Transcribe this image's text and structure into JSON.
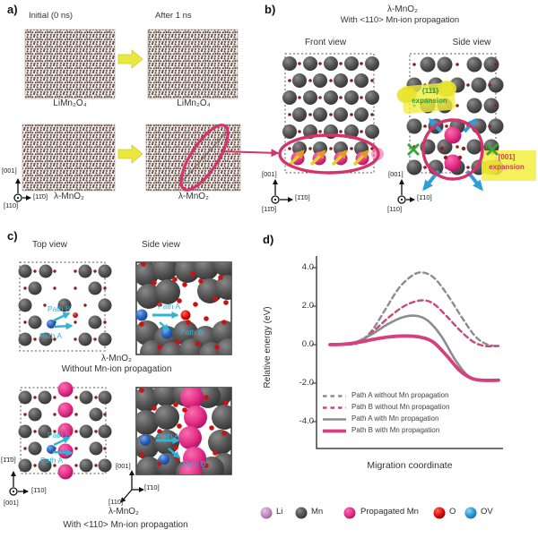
{
  "panels": {
    "a": {
      "label": "a)",
      "col1_header": "Initial (0 ns)",
      "col2_header": "After 1 ns",
      "captions": {
        "top_left": "LiMn₂O₄",
        "top_right": "LiMn₂O₄",
        "bottom_left": "λ-MnO₂",
        "bottom_right": "λ-MnO₂"
      },
      "axes": {
        "up": "[001]",
        "right": "[11̄0]",
        "out": "[110]"
      }
    },
    "b": {
      "label": "b)",
      "title_line1": "λ-MnO₂",
      "title_line2": "With <110> Mn-ion propagation",
      "front_view_label": "Front view",
      "side_view_label": "Side view",
      "annotations": {
        "expansion_111_line1": "{111}",
        "expansion_111_line2": "expansion",
        "expansion_001_line1": "[001]",
        "expansion_001_line2": "expansion"
      },
      "front_axes": {
        "up": "[001]",
        "right": "[1̄1̄0]",
        "out": "[11̄0]"
      },
      "side_axes": {
        "up": "[001]",
        "right": "[1̄10]",
        "out": "[110]"
      }
    },
    "c": {
      "label": "c)",
      "top_view_label": "Top view",
      "side_view_label": "Side view",
      "top": {
        "path_a": "Path A",
        "path_b": "Path B",
        "side_path_a": "Path A",
        "side_path_b": "Path B",
        "caption_line1": "λ-MnO₂",
        "caption_line2": "Without Mn-ion propagation"
      },
      "bottom": {
        "path_a": "Path A",
        "path_b": "Path B",
        "side_path_a": "Path A",
        "side_path_b": "Path B",
        "caption_line1": "λ-MnO₂",
        "caption_line2": "With <110> Mn-ion propagation",
        "left_axes": {
          "up": "[1̄1̄0]",
          "right": "[1̄10]",
          "out": "[001]"
        },
        "right_axes": {
          "up": "[001]",
          "right": "[1̄10]",
          "diag": "[110]"
        }
      }
    },
    "d": {
      "label": "d)"
    }
  },
  "chart_data": {
    "type": "line",
    "title": "",
    "xlabel": "Migration coordinate",
    "ylabel": "Relative energy (eV)",
    "x_range": [
      0,
      1
    ],
    "ylim": [
      -5.4,
      4.6
    ],
    "yticks": [
      4.0,
      2.0,
      0.0,
      -2.0,
      -4.0
    ],
    "ytick_labels": [
      "4.0",
      "2.0",
      "0.0",
      "-2.0",
      "-4.0"
    ],
    "grid": false,
    "legend_position": "inside bottom-left",
    "series": [
      {
        "name": "Path A without Mn propagation",
        "style": "dashed",
        "color": "#8c8c8c",
        "width": 2.4,
        "points": [
          [
            0,
            0
          ],
          [
            0.1,
            0
          ],
          [
            0.17,
            0.1
          ],
          [
            0.25,
            0.75
          ],
          [
            0.33,
            1.85
          ],
          [
            0.41,
            2.95
          ],
          [
            0.49,
            3.6
          ],
          [
            0.55,
            3.75
          ],
          [
            0.62,
            3.45
          ],
          [
            0.7,
            2.55
          ],
          [
            0.78,
            1.45
          ],
          [
            0.86,
            0.45
          ],
          [
            0.93,
            0.02
          ],
          [
            1,
            -0.08
          ]
        ]
      },
      {
        "name": "Path B without Mn propagation",
        "style": "dashed",
        "color": "#c9487c",
        "width": 2.4,
        "points": [
          [
            0,
            0
          ],
          [
            0.1,
            0
          ],
          [
            0.18,
            0.15
          ],
          [
            0.27,
            0.8
          ],
          [
            0.36,
            1.5
          ],
          [
            0.45,
            2.05
          ],
          [
            0.54,
            2.3
          ],
          [
            0.61,
            2.15
          ],
          [
            0.69,
            1.5
          ],
          [
            0.77,
            0.75
          ],
          [
            0.85,
            0.15
          ],
          [
            0.92,
            -0.07
          ],
          [
            1,
            -0.07
          ]
        ]
      },
      {
        "name": "Path A with Mn propagation",
        "style": "solid",
        "color": "#8c8c8c",
        "width": 2.6,
        "points": [
          [
            0,
            0
          ],
          [
            0.08,
            0
          ],
          [
            0.16,
            0.15
          ],
          [
            0.25,
            0.55
          ],
          [
            0.34,
            1.05
          ],
          [
            0.43,
            1.42
          ],
          [
            0.51,
            1.5
          ],
          [
            0.58,
            1.25
          ],
          [
            0.66,
            0.45
          ],
          [
            0.74,
            -0.75
          ],
          [
            0.81,
            -1.55
          ],
          [
            0.87,
            -1.82
          ],
          [
            0.93,
            -1.86
          ],
          [
            1,
            -1.86
          ]
        ]
      },
      {
        "name": "Path B with Mn propagation",
        "style": "solid",
        "color": "#d63f80",
        "width": 3.8,
        "points": [
          [
            0,
            0
          ],
          [
            0.08,
            0.02
          ],
          [
            0.17,
            0.12
          ],
          [
            0.26,
            0.28
          ],
          [
            0.35,
            0.4
          ],
          [
            0.44,
            0.45
          ],
          [
            0.53,
            0.4
          ],
          [
            0.61,
            0.15
          ],
          [
            0.69,
            -0.55
          ],
          [
            0.77,
            -1.35
          ],
          [
            0.84,
            -1.75
          ],
          [
            0.9,
            -1.85
          ],
          [
            1,
            -1.85
          ]
        ]
      }
    ]
  },
  "atom_legend": {
    "items": [
      {
        "label": "Li",
        "color": "#c590c5"
      },
      {
        "label": "Mn",
        "color": "#4f4f4f"
      },
      {
        "label": "Propagated Mn",
        "color": "#e8338c"
      },
      {
        "label": "O",
        "color": "#e51212"
      },
      {
        "label": "OV",
        "color": "#2d9fd6"
      }
    ]
  },
  "colors": {
    "magenta_highlight": "#d6336c",
    "cyan_path": "#2fb4d8",
    "green_expansion": "#2f9e2f",
    "yellow_highlight": "#f2ee3f",
    "yellow_arrow": "#e3cf35"
  }
}
